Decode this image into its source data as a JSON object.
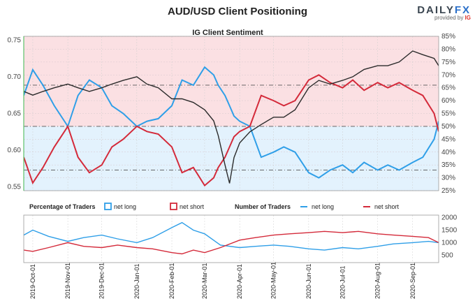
{
  "title": "AUD/USD Client Positioning",
  "brand": {
    "logo_main": "DAILY",
    "logo_fx": "FX",
    "provided_by": "provided by",
    "provider": "IG"
  },
  "colors": {
    "long": "#2f9fe8",
    "short": "#d42a3a",
    "price": "#2b2b2b",
    "long_bg": "#e3f2fd",
    "short_bg": "#fbe0e3",
    "accent_green": "#5cc26a"
  },
  "chart_data": [
    {
      "type": "line",
      "title": "IG Client Sentiment",
      "y_left_ticks": [
        "0.75",
        "0.70",
        "0.65",
        "0.60",
        "0.55"
      ],
      "y_left_range": [
        0.545,
        0.755
      ],
      "y_right_ticks": [
        "85%",
        "80%",
        "75%",
        "70%",
        "65%",
        "60%",
        "55%",
        "50%",
        "45%",
        "40%",
        "35%",
        "30%",
        "25%"
      ],
      "y_right_range": [
        25,
        85
      ],
      "reference_lines_pct": [
        66,
        50,
        33
      ],
      "series": [
        {
          "name": "AUD/USD",
          "axis": "left",
          "x": [
            "2019-09-23",
            "2019-10-01",
            "2019-10-10",
            "2019-10-20",
            "2019-11-01",
            "2019-11-10",
            "2019-11-20",
            "2019-12-01",
            "2019-12-10",
            "2019-12-20",
            "2020-01-01",
            "2020-01-10",
            "2020-01-20",
            "2020-02-01",
            "2020-02-10",
            "2020-02-20",
            "2020-03-01",
            "2020-03-09",
            "2020-03-13",
            "2020-03-19",
            "2020-03-23",
            "2020-03-27",
            "2020-04-01",
            "2020-04-10",
            "2020-04-20",
            "2020-05-01",
            "2020-05-10",
            "2020-05-20",
            "2020-06-01",
            "2020-06-10",
            "2020-06-20",
            "2020-07-01",
            "2020-07-10",
            "2020-07-20",
            "2020-08-01",
            "2020-08-10",
            "2020-08-20",
            "2020-09-01",
            "2020-09-10",
            "2020-09-20",
            "2020-09-24"
          ],
          "values": [
            0.68,
            0.675,
            0.68,
            0.685,
            0.69,
            0.685,
            0.68,
            0.685,
            0.69,
            0.695,
            0.7,
            0.69,
            0.685,
            0.67,
            0.67,
            0.665,
            0.655,
            0.64,
            0.62,
            0.58,
            0.555,
            0.59,
            0.61,
            0.625,
            0.635,
            0.645,
            0.645,
            0.655,
            0.685,
            0.695,
            0.69,
            0.695,
            0.7,
            0.71,
            0.715,
            0.715,
            0.72,
            0.735,
            0.73,
            0.725,
            0.715
          ]
        },
        {
          "name": "net long %",
          "axis": "right",
          "x": [
            "2019-09-23",
            "2019-10-01",
            "2019-10-10",
            "2019-10-20",
            "2019-11-01",
            "2019-11-10",
            "2019-11-20",
            "2019-12-01",
            "2019-12-10",
            "2019-12-20",
            "2020-01-01",
            "2020-01-10",
            "2020-01-20",
            "2020-02-01",
            "2020-02-10",
            "2020-02-20",
            "2020-03-01",
            "2020-03-09",
            "2020-03-13",
            "2020-03-19",
            "2020-03-23",
            "2020-03-27",
            "2020-04-01",
            "2020-04-10",
            "2020-04-20",
            "2020-05-01",
            "2020-05-10",
            "2020-05-20",
            "2020-06-01",
            "2020-06-10",
            "2020-06-20",
            "2020-07-01",
            "2020-07-10",
            "2020-07-20",
            "2020-08-01",
            "2020-08-10",
            "2020-08-20",
            "2020-09-01",
            "2020-09-10",
            "2020-09-20",
            "2020-09-24"
          ],
          "values": [
            62,
            72,
            66,
            58,
            50,
            62,
            68,
            65,
            58,
            55,
            50,
            52,
            53,
            58,
            68,
            66,
            73,
            70,
            66,
            62,
            58,
            54,
            52,
            50,
            38,
            40,
            42,
            40,
            32,
            30,
            33,
            35,
            32,
            36,
            33,
            35,
            33,
            36,
            38,
            45,
            52
          ]
        },
        {
          "name": "net short %",
          "axis": "right",
          "x": [
            "2019-09-23",
            "2019-10-01",
            "2019-10-10",
            "2019-10-20",
            "2019-11-01",
            "2019-11-10",
            "2019-11-20",
            "2019-12-01",
            "2019-12-10",
            "2019-12-20",
            "2020-01-01",
            "2020-01-10",
            "2020-01-20",
            "2020-02-01",
            "2020-02-10",
            "2020-02-20",
            "2020-03-01",
            "2020-03-09",
            "2020-03-13",
            "2020-03-19",
            "2020-03-23",
            "2020-03-27",
            "2020-04-01",
            "2020-04-10",
            "2020-04-20",
            "2020-05-01",
            "2020-05-10",
            "2020-05-20",
            "2020-06-01",
            "2020-06-10",
            "2020-06-20",
            "2020-07-01",
            "2020-07-10",
            "2020-07-20",
            "2020-08-01",
            "2020-08-10",
            "2020-08-20",
            "2020-09-01",
            "2020-09-10",
            "2020-09-20",
            "2020-09-24"
          ],
          "values": [
            38,
            28,
            34,
            42,
            50,
            38,
            32,
            35,
            42,
            45,
            50,
            48,
            47,
            42,
            32,
            34,
            27,
            30,
            34,
            38,
            42,
            46,
            48,
            50,
            62,
            60,
            58,
            60,
            68,
            70,
            67,
            65,
            68,
            64,
            67,
            65,
            67,
            64,
            62,
            55,
            48
          ]
        }
      ]
    },
    {
      "type": "line",
      "legend": {
        "pct_label": "Percentage of Traders",
        "pct_long": "net long",
        "pct_short": "net short",
        "num_label": "Number of Traders",
        "num_long": "net long",
        "num_short": "net short"
      },
      "y_ticks": [
        "2000",
        "1500",
        "1000",
        "500"
      ],
      "y_range": [
        200,
        2100
      ],
      "x_ticks": [
        "2019-Oct-01",
        "2019-Nov-01",
        "2019-Dec-01",
        "2020-Jan-01",
        "2020-Feb-01",
        "2020-Mar-01",
        "2020-Apr-01",
        "2020-May-01",
        "2020-Jun-01",
        "2020-Jul-01",
        "2020-Aug-01",
        "2020-Sep-01"
      ],
      "series": [
        {
          "name": "net long",
          "x": [
            "2019-09-23",
            "2019-10-01",
            "2019-10-15",
            "2019-11-01",
            "2019-11-15",
            "2019-12-01",
            "2019-12-15",
            "2020-01-01",
            "2020-01-15",
            "2020-02-01",
            "2020-02-10",
            "2020-02-20",
            "2020-03-01",
            "2020-03-15",
            "2020-04-01",
            "2020-04-15",
            "2020-05-01",
            "2020-05-15",
            "2020-06-01",
            "2020-06-15",
            "2020-07-01",
            "2020-07-15",
            "2020-08-01",
            "2020-08-15",
            "2020-09-01",
            "2020-09-15",
            "2020-09-24"
          ],
          "values": [
            1300,
            1500,
            1250,
            1050,
            1200,
            1300,
            1150,
            1000,
            1200,
            1600,
            1800,
            1500,
            1350,
            900,
            800,
            850,
            900,
            850,
            750,
            700,
            800,
            750,
            850,
            950,
            1000,
            1050,
            1000
          ]
        },
        {
          "name": "net short",
          "x": [
            "2019-09-23",
            "2019-10-01",
            "2019-10-15",
            "2019-11-01",
            "2019-11-15",
            "2019-12-01",
            "2019-12-15",
            "2020-01-01",
            "2020-01-15",
            "2020-02-01",
            "2020-02-10",
            "2020-02-20",
            "2020-03-01",
            "2020-03-15",
            "2020-04-01",
            "2020-04-15",
            "2020-05-01",
            "2020-05-15",
            "2020-06-01",
            "2020-06-15",
            "2020-07-01",
            "2020-07-15",
            "2020-08-01",
            "2020-08-15",
            "2020-09-01",
            "2020-09-15",
            "2020-09-24"
          ],
          "values": [
            700,
            650,
            800,
            1000,
            850,
            800,
            900,
            800,
            750,
            600,
            550,
            700,
            600,
            800,
            1100,
            1200,
            1300,
            1350,
            1400,
            1450,
            1400,
            1450,
            1350,
            1300,
            1250,
            1200,
            1000
          ]
        }
      ]
    }
  ]
}
